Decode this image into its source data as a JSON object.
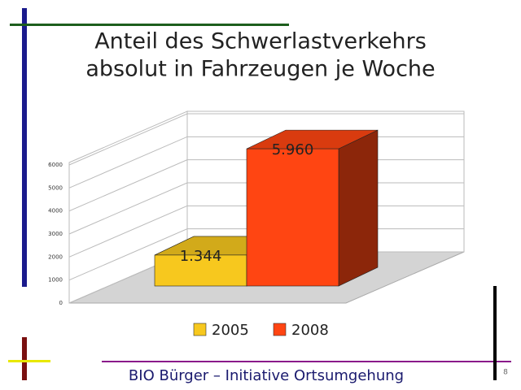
{
  "chart_data": {
    "type": "bar3d",
    "title": [
      "Anteil des Schwerlastverkehrs",
      "absolut in Fahrzeugen je Woche"
    ],
    "series": [
      {
        "name": "2005",
        "color": "#f7c81e",
        "values": [
          1344
        ],
        "value_labels": [
          "1.344"
        ]
      },
      {
        "name": "2008",
        "color": "#ff4512",
        "values": [
          5960
        ],
        "value_labels": [
          "5.960"
        ]
      }
    ],
    "ylim": [
      0,
      6000
    ],
    "yticks": [
      0,
      1000,
      2000,
      3000,
      4000,
      5000,
      6000
    ],
    "grid": true
  },
  "footer": "BIO Bürger – Initiative Ortsumgehung",
  "page_number": "8"
}
